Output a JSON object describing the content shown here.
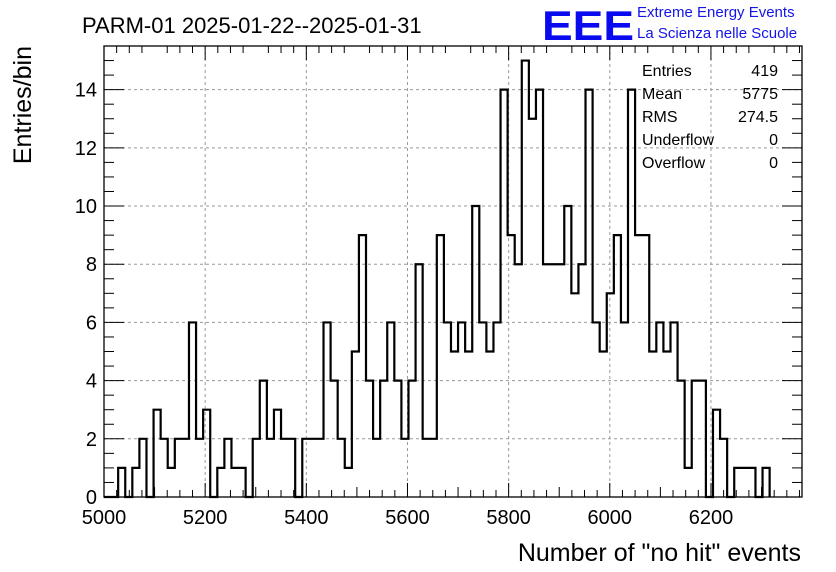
{
  "chart_data": {
    "type": "histogram",
    "title": "PARM-01 2025-01-22--2025-01-31",
    "xlabel": "Number of \"no hit\" events",
    "ylabel": "Entries/bin",
    "xlim": [
      5000,
      6380
    ],
    "ylim": [
      0,
      15.5
    ],
    "bin_start": 5000,
    "bin_width": 14,
    "counts": [
      0,
      0,
      1,
      0,
      1,
      2,
      0,
      3,
      2,
      1,
      2,
      2,
      6,
      2,
      3,
      0,
      1,
      2,
      1,
      1,
      0,
      2,
      4,
      2,
      3,
      2,
      2,
      0,
      2,
      2,
      2,
      6,
      4,
      2,
      1,
      5,
      9,
      4,
      2,
      4,
      6,
      4,
      2,
      4,
      8,
      2,
      2,
      9,
      6,
      5,
      6,
      5,
      10,
      6,
      5,
      6,
      14,
      9,
      8,
      15,
      13,
      14,
      8,
      8,
      8,
      10,
      7,
      8,
      14,
      6,
      5,
      7,
      9,
      6,
      14,
      9,
      9,
      5,
      6,
      5,
      6,
      4,
      1,
      4,
      4,
      0,
      3,
      2,
      0,
      1,
      1,
      1,
      0,
      1
    ],
    "xticks": [
      5000,
      5200,
      5400,
      5600,
      5800,
      6000,
      6200
    ],
    "yticks": [
      0,
      2,
      4,
      6,
      8,
      10,
      12,
      14
    ],
    "grid": true,
    "stats": {
      "entries_label": "Entries",
      "entries_value": "419",
      "mean_label": "Mean",
      "mean_value": "5775",
      "rms_label": "RMS",
      "rms_value": "274.5",
      "underflow_label": "Underflow",
      "underflow_value": "0",
      "overflow_label": "Overflow",
      "overflow_value": "0"
    }
  },
  "logo": {
    "mark": "EEE",
    "line1": "Extreme Energy Events",
    "line2": "La Scienza nelle Scuole"
  }
}
